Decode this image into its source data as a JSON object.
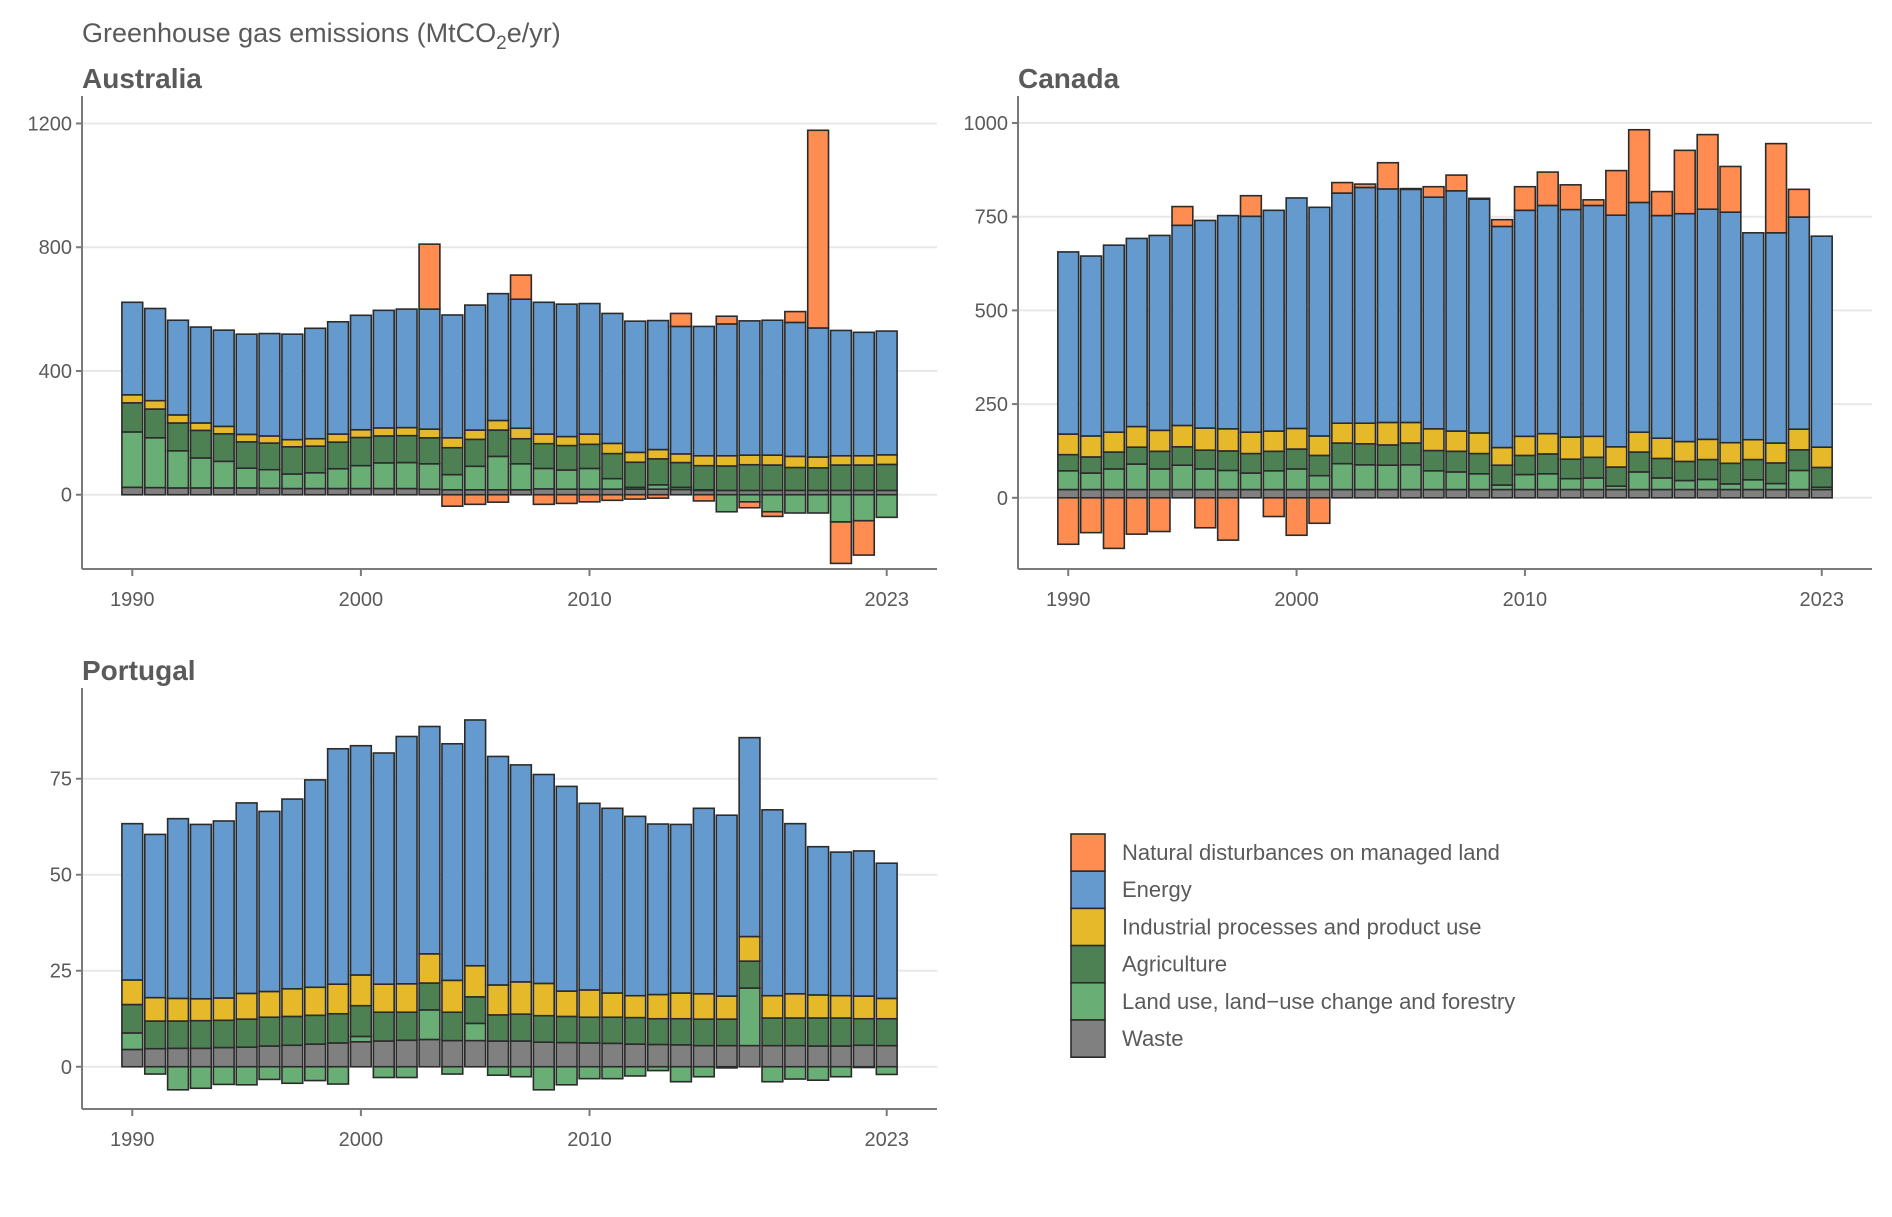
{
  "title": {
    "prefix": "Greenhouse gas emissions (MtCO",
    "subscript": "2",
    "suffix": "e/yr)"
  },
  "legend": {
    "items": [
      {
        "key": "natural",
        "label": "Natural disturbances on managed land",
        "color": "#FF8C50"
      },
      {
        "key": "energy",
        "label": "Energy",
        "color": "#649ACD"
      },
      {
        "key": "ippu",
        "label": "Industrial processes and product use",
        "color": "#E6B92B"
      },
      {
        "key": "agriculture",
        "label": "Agriculture",
        "color": "#4D8153"
      },
      {
        "key": "lulucf",
        "label": "Land use, land−use change and forestry",
        "color": "#69AE75"
      },
      {
        "key": "waste",
        "label": "Waste",
        "color": "#808080"
      }
    ]
  },
  "chart_data": [
    {
      "type": "bar",
      "stacked": true,
      "title": "Australia",
      "xlabel": "",
      "ylabel": "Greenhouse gas emissions (MtCO2e/yr)",
      "x": [
        1990,
        1991,
        1992,
        1993,
        1994,
        1995,
        1996,
        1997,
        1998,
        1999,
        2000,
        2001,
        2002,
        2003,
        2004,
        2005,
        2006,
        2007,
        2008,
        2009,
        2010,
        2011,
        2012,
        2013,
        2014,
        2015,
        2016,
        2017,
        2018,
        2019,
        2020,
        2021,
        2022,
        2023
      ],
      "x_ticks": [
        "1990",
        "2000",
        "2010",
        "2023"
      ],
      "y_ticks": [
        "0",
        "400",
        "800",
        "1200"
      ],
      "ylim": [
        -240,
        1250
      ],
      "xlim": [
        1987.8,
        2025.2
      ],
      "grid": true,
      "series": [
        {
          "name": "Waste",
          "key": "waste",
          "values": [
            24,
            23,
            22,
            22,
            22,
            22,
            21,
            20,
            20,
            20,
            20,
            20,
            20,
            18,
            16,
            16,
            16,
            16,
            19,
            18,
            18,
            18,
            18,
            18,
            17,
            14,
            14,
            14,
            14,
            14,
            14,
            14,
            14,
            14
          ]
        },
        {
          "name": "Land use, land-use change and forestry",
          "key": "lulucf",
          "values": [
            179,
            161,
            120,
            97,
            86,
            64,
            60,
            47,
            51,
            64,
            74,
            83,
            84,
            82,
            49,
            76,
            108,
            84,
            66,
            62,
            67,
            34,
            6,
            14,
            7,
            2,
            -55,
            -23,
            -55,
            -59,
            -59,
            -88,
            -84,
            -73
          ]
        },
        {
          "name": "Agriculture",
          "key": "agriculture",
          "values": [
            94,
            93,
            90,
            89,
            89,
            85,
            86,
            88,
            86,
            86,
            91,
            87,
            87,
            84,
            87,
            87,
            85,
            81,
            80,
            79,
            78,
            81,
            81,
            84,
            80,
            78,
            79,
            83,
            82,
            74,
            73,
            82,
            82,
            84
          ]
        },
        {
          "name": "Industrial processes and product use",
          "key": "ippu",
          "values": [
            26,
            27,
            26,
            24,
            24,
            24,
            23,
            23,
            24,
            26,
            25,
            26,
            26,
            28,
            32,
            30,
            31,
            34,
            31,
            29,
            33,
            33,
            32,
            30,
            28,
            32,
            33,
            31,
            32,
            36,
            35,
            30,
            30,
            31
          ]
        },
        {
          "name": "Energy",
          "key": "energy",
          "values": [
            299,
            298,
            306,
            310,
            311,
            324,
            331,
            341,
            357,
            363,
            370,
            380,
            383,
            388,
            397,
            404,
            410,
            417,
            426,
            428,
            422,
            420,
            424,
            417,
            412,
            418,
            426,
            434,
            436,
            433,
            417,
            405,
            399,
            400
          ]
        },
        {
          "name": "Natural disturbances on managed land",
          "key": "natural",
          "values": [
            0,
            0,
            0,
            0,
            0,
            0,
            0,
            0,
            0,
            0,
            0,
            0,
            0,
            210,
            -37,
            -31,
            -24,
            78,
            -31,
            -28,
            -23,
            -18,
            -14,
            -11,
            42,
            -20,
            25,
            -19,
            -15,
            35,
            639,
            -134,
            -111,
            0
          ]
        }
      ]
    },
    {
      "type": "bar",
      "stacked": true,
      "title": "Canada",
      "xlabel": "",
      "ylabel": "Greenhouse gas emissions (MtCO2e/yr)",
      "x": [
        1990,
        1991,
        1992,
        1993,
        1994,
        1995,
        1996,
        1997,
        1998,
        1999,
        2000,
        2001,
        2002,
        2003,
        2004,
        2005,
        2006,
        2007,
        2008,
        2009,
        2010,
        2011,
        2012,
        2013,
        2014,
        2015,
        2016,
        2017,
        2018,
        2019,
        2020,
        2021,
        2022,
        2023
      ],
      "x_ticks": [
        "1990",
        "2000",
        "2010",
        "2023"
      ],
      "y_ticks": [
        "0",
        "250",
        "500",
        "750",
        "1000"
      ],
      "ylim": [
        -190,
        1040
      ],
      "xlim": [
        1987.8,
        2025.2
      ],
      "grid": true,
      "series": [
        {
          "name": "Waste",
          "key": "waste",
          "values": [
            22,
            22,
            22,
            22,
            22,
            22,
            22,
            22,
            22,
            22,
            22,
            22,
            22,
            22,
            22,
            22,
            22,
            22,
            22,
            22,
            22,
            22,
            22,
            22,
            22,
            22,
            22,
            22,
            22,
            22,
            22,
            22,
            22,
            22
          ]
        },
        {
          "name": "Land use, land-use change and forestry",
          "key": "lulucf",
          "values": [
            50,
            44,
            55,
            68,
            55,
            65,
            55,
            51,
            44,
            50,
            55,
            37,
            69,
            66,
            65,
            66,
            50,
            47,
            42,
            12,
            40,
            42,
            29,
            31,
            9,
            47,
            31,
            24,
            27,
            15,
            26,
            16,
            51,
            6
          ]
        },
        {
          "name": "Agriculture",
          "key": "agriculture",
          "values": [
            43,
            43,
            45,
            45,
            47,
            49,
            50,
            52,
            52,
            52,
            53,
            54,
            55,
            56,
            54,
            58,
            54,
            55,
            54,
            53,
            51,
            53,
            52,
            55,
            51,
            53,
            52,
            51,
            53,
            55,
            54,
            55,
            55,
            53
          ]
        },
        {
          "name": "Industrial processes and product use",
          "key": "ippu",
          "values": [
            55,
            56,
            53,
            55,
            56,
            57,
            59,
            59,
            57,
            54,
            55,
            52,
            53,
            55,
            60,
            55,
            58,
            54,
            55,
            47,
            51,
            54,
            59,
            56,
            54,
            53,
            54,
            53,
            54,
            55,
            53,
            53,
            55,
            54
          ]
        },
        {
          "name": "Energy",
          "key": "energy",
          "values": [
            486,
            480,
            499,
            502,
            520,
            534,
            554,
            569,
            576,
            589,
            615,
            610,
            614,
            629,
            623,
            622,
            618,
            641,
            624,
            590,
            603,
            609,
            607,
            616,
            618,
            613,
            594,
            608,
            614,
            615,
            552,
            561,
            566,
            563
          ]
        },
        {
          "name": "Natural disturbances on managed land",
          "key": "natural",
          "values": [
            -124,
            -93,
            -135,
            -97,
            -90,
            50,
            -80,
            -113,
            55,
            -50,
            -100,
            -68,
            28,
            9,
            70,
            2,
            28,
            42,
            2,
            18,
            63,
            89,
            66,
            15,
            119,
            194,
            64,
            169,
            199,
            122,
            0,
            238,
            74,
            0
          ]
        }
      ]
    },
    {
      "type": "bar",
      "stacked": true,
      "title": "Portugal",
      "xlabel": "",
      "ylabel": "Greenhouse gas emissions (MtCO2e/yr)",
      "x": [
        1990,
        1991,
        1992,
        1993,
        1994,
        1995,
        1996,
        1997,
        1998,
        1999,
        2000,
        2001,
        2002,
        2003,
        2004,
        2005,
        2006,
        2007,
        2008,
        2009,
        2010,
        2011,
        2012,
        2013,
        2014,
        2015,
        2016,
        2017,
        2018,
        2019,
        2020,
        2021,
        2022,
        2023
      ],
      "x_ticks": [
        "1990",
        "2000",
        "2010",
        "2023"
      ],
      "y_ticks": [
        "0",
        "25",
        "50",
        "75"
      ],
      "ylim": [
        -11,
        95.5
      ],
      "xlim": [
        1987.8,
        2025.2
      ],
      "grid": true,
      "series": [
        {
          "name": "Waste",
          "key": "waste",
          "values": [
            4.5,
            4.7,
            4.8,
            4.8,
            5.0,
            5.1,
            5.4,
            5.6,
            5.9,
            6.2,
            6.5,
            6.7,
            6.9,
            7.1,
            6.8,
            6.8,
            6.7,
            6.7,
            6.4,
            6.3,
            6.2,
            6.1,
            5.9,
            5.8,
            5.7,
            5.5,
            5.5,
            5.5,
            5.5,
            5.5,
            5.4,
            5.4,
            5.6,
            5.5
          ]
        },
        {
          "name": "Land use, land-use change and forestry",
          "key": "lulucf",
          "values": [
            4.3,
            -1.9,
            -6.0,
            -5.6,
            -4.6,
            -4.7,
            -3.3,
            -4.3,
            -3.6,
            -4.5,
            1.4,
            -2.8,
            -2.8,
            7.7,
            -1.9,
            4.5,
            -2.2,
            -2.6,
            -6.0,
            -4.7,
            -3.1,
            -3.1,
            -2.4,
            -1.0,
            -3.9,
            -2.6,
            -0.3,
            15.0,
            -3.9,
            -3.2,
            -3.5,
            -2.6,
            -0.2,
            -2.0
          ]
        },
        {
          "name": "Agriculture",
          "key": "agriculture",
          "values": [
            7.4,
            7.2,
            7.1,
            7.2,
            7.1,
            7.3,
            7.5,
            7.5,
            7.5,
            7.6,
            8.0,
            7.5,
            7.3,
            7.0,
            7.4,
            6.9,
            6.8,
            7.0,
            6.9,
            6.8,
            6.7,
            6.8,
            6.9,
            6.7,
            6.8,
            6.9,
            6.9,
            7.0,
            7.2,
            7.2,
            7.3,
            7.3,
            6.9,
            7.0
          ]
        },
        {
          "name": "Industrial processes and product use",
          "key": "ippu",
          "values": [
            6.4,
            6.1,
            5.9,
            5.7,
            5.8,
            6.7,
            6.7,
            7.2,
            7.3,
            7.7,
            8.0,
            7.3,
            7.4,
            7.6,
            8.3,
            8.1,
            7.8,
            8.4,
            8.4,
            6.6,
            7.1,
            6.3,
            5.7,
            6.3,
            6.7,
            6.6,
            6.0,
            6.4,
            5.8,
            6.3,
            6.0,
            5.8,
            5.9,
            5.3
          ]
        },
        {
          "name": "Energy",
          "key": "energy",
          "values": [
            40.7,
            42.5,
            46.8,
            45.4,
            46.1,
            49.6,
            46.9,
            49.4,
            54.0,
            61.3,
            59.7,
            60.2,
            64.4,
            59.2,
            61.6,
            64.0,
            59.5,
            56.5,
            54.4,
            53.3,
            48.6,
            48.1,
            46.7,
            44.4,
            43.9,
            48.3,
            47.1,
            51.8,
            48.4,
            44.3,
            38.6,
            37.4,
            37.8,
            35.2
          ]
        },
        {
          "name": "Natural disturbances on managed land",
          "key": "natural",
          "values": [
            0,
            0,
            0,
            0,
            0,
            0,
            0,
            0,
            0,
            0,
            0,
            0,
            0,
            0,
            0,
            0,
            0,
            0,
            0,
            0,
            0,
            0,
            0,
            0,
            0,
            0,
            0,
            0,
            0,
            0,
            0,
            0,
            0,
            0
          ]
        }
      ]
    }
  ]
}
